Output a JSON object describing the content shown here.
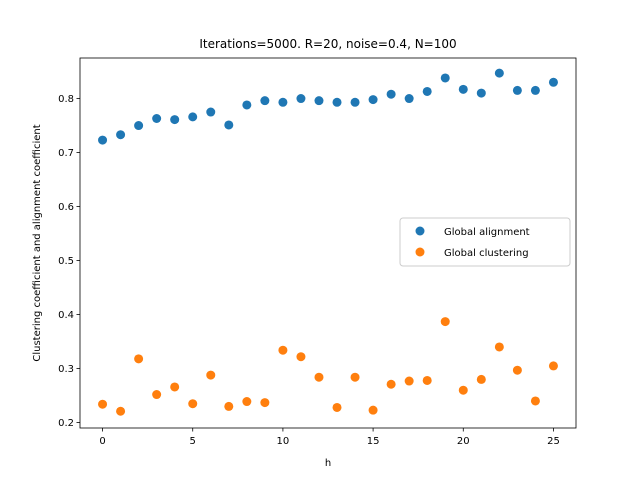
{
  "chart_data": {
    "type": "scatter",
    "title": "Iterations=5000. R=20, noise=0.4, N=100",
    "xlabel": "h",
    "ylabel": "Clustering coefficient and alignment coefficient",
    "xlim": [
      -1.25,
      26.25
    ],
    "ylim": [
      0.19,
      0.875
    ],
    "xticks": [
      0,
      5,
      10,
      15,
      20,
      25
    ],
    "yticks": [
      0.2,
      0.3,
      0.4,
      0.5,
      0.6,
      0.7,
      0.8
    ],
    "legend_position": "center-right",
    "grid": false,
    "series": [
      {
        "name": "Global alignment",
        "color": "#1f77b4",
        "x": [
          0,
          1,
          2,
          3,
          4,
          5,
          6,
          7,
          8,
          9,
          10,
          11,
          12,
          13,
          14,
          15,
          16,
          17,
          18,
          19,
          20,
          21,
          22,
          23,
          24,
          25
        ],
        "values": [
          0.723,
          0.733,
          0.75,
          0.763,
          0.761,
          0.766,
          0.775,
          0.751,
          0.788,
          0.796,
          0.793,
          0.8,
          0.796,
          0.793,
          0.793,
          0.798,
          0.808,
          0.8,
          0.813,
          0.838,
          0.817,
          0.81,
          0.847,
          0.815,
          0.815,
          0.83
        ]
      },
      {
        "name": "Global clustering",
        "color": "#ff7f0e",
        "x": [
          0,
          1,
          2,
          3,
          4,
          5,
          6,
          7,
          8,
          9,
          10,
          11,
          12,
          13,
          14,
          15,
          16,
          17,
          18,
          19,
          20,
          21,
          22,
          23,
          24,
          25
        ],
        "values": [
          0.234,
          0.221,
          0.318,
          0.252,
          0.266,
          0.235,
          0.288,
          0.23,
          0.239,
          0.237,
          0.334,
          0.322,
          0.284,
          0.228,
          0.284,
          0.223,
          0.271,
          0.277,
          0.278,
          0.387,
          0.26,
          0.28,
          0.34,
          0.297,
          0.24,
          0.305
        ]
      }
    ]
  }
}
